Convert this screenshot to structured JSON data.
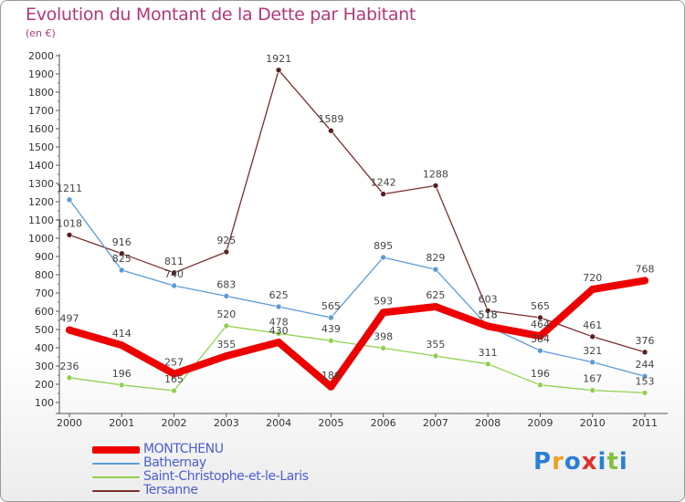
{
  "header": {
    "title": "Evolution du Montant de la Dette par Habitant",
    "subtitle": "(en €)"
  },
  "logo": {
    "text": "Proxiti",
    "letters": [
      "P",
      "r",
      "o",
      "x",
      "i",
      "t",
      "i"
    ],
    "colors": [
      "#2a7fd4",
      "#f0a020",
      "#2a7fd4",
      "#e03030",
      "#2a7fd4",
      "#80c040",
      "#2a7fd4"
    ]
  },
  "chart_data": {
    "type": "line",
    "title": "Evolution du Montant de la Dette par Habitant",
    "ylabel": "(en €)",
    "xlabel": "",
    "categories": [
      "2000",
      "2001",
      "2002",
      "2003",
      "2004",
      "2005",
      "2006",
      "2007",
      "2008",
      "2009",
      "2010",
      "2011"
    ],
    "ylim": [
      100,
      2000
    ],
    "yticks": [
      100,
      200,
      300,
      400,
      500,
      600,
      700,
      800,
      900,
      1000,
      1100,
      1200,
      1300,
      1400,
      1500,
      1600,
      1700,
      1800,
      1900,
      2000
    ],
    "grid": false,
    "legend_position": "bottom-left",
    "series": [
      {
        "name": "MONTCHENU",
        "color": "#ee0000",
        "values": [
          497,
          414,
          257,
          355,
          430,
          186,
          593,
          625,
          518,
          464,
          720,
          768
        ],
        "labels": [
          "497",
          "414",
          "257",
          "355",
          "430",
          "186",
          "593",
          "625",
          "518",
          "464",
          "720",
          "768"
        ]
      },
      {
        "name": "Bathernay",
        "color": "#5b9bd5",
        "values": [
          1211,
          825,
          740,
          683,
          625,
          565,
          895,
          829,
          518,
          384,
          321,
          244
        ],
        "labels": [
          "1211",
          "825",
          "740",
          "683",
          "625",
          "565",
          "895",
          "829",
          "518",
          "384",
          "321",
          "244"
        ]
      },
      {
        "name": "Saint-Christophe-et-le-Laris",
        "color": "#92d050",
        "values": [
          236,
          196,
          165,
          520,
          478,
          439,
          398,
          355,
          311,
          196,
          167,
          153
        ],
        "labels": [
          "236",
          "196",
          "165",
          "520",
          "478",
          "439",
          "398",
          "355",
          "311",
          "196",
          "167",
          "153"
        ]
      },
      {
        "name": "Tersanne",
        "color": "#7b2d2d",
        "values": [
          1018,
          916,
          811,
          925,
          1921,
          1589,
          1242,
          1288,
          603,
          565,
          461,
          376
        ],
        "labels": [
          "1018",
          "916",
          "811",
          "925",
          "1921",
          "1589",
          "1242",
          "1288",
          "603",
          "565",
          "461",
          "376"
        ]
      }
    ]
  }
}
